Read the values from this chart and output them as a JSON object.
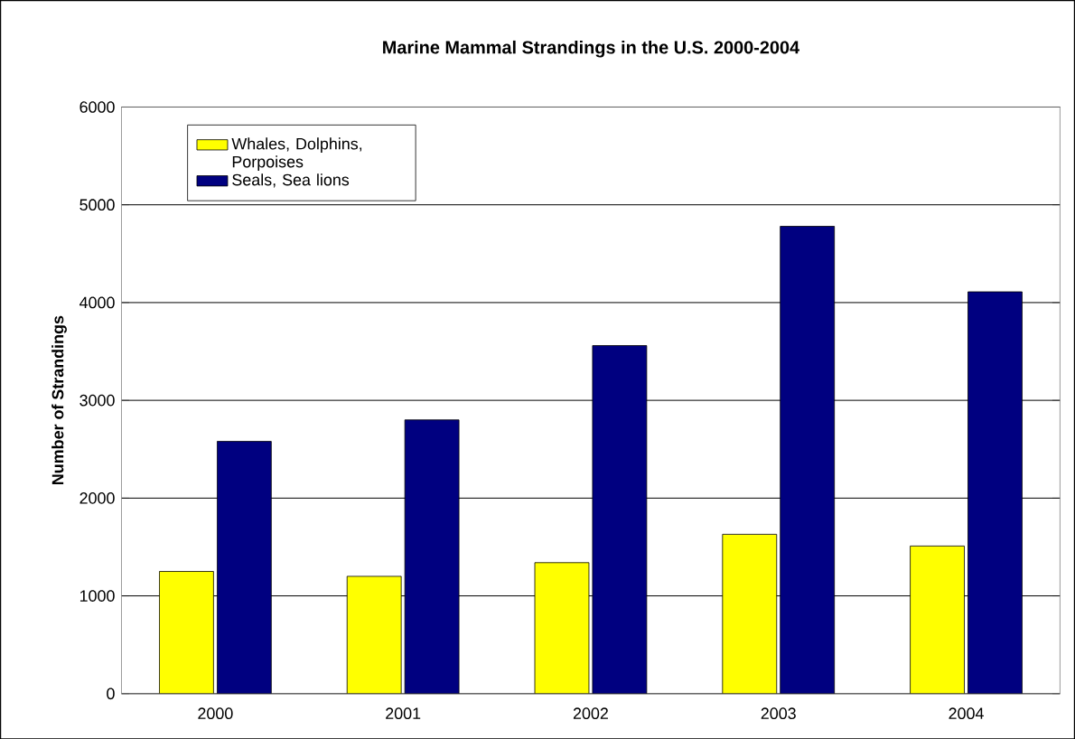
{
  "chart_data": {
    "type": "bar",
    "title": "Marine Mammal Strandings in the U.S. 2000-2004",
    "ylabel": "Number of Strandings",
    "categories": [
      "2000",
      "2001",
      "2002",
      "2003",
      "2004"
    ],
    "series": [
      {
        "name": "Whales, Dolphins, Porpoises",
        "color": "#ffff00",
        "values": [
          1250,
          1200,
          1340,
          1630,
          1510
        ]
      },
      {
        "name": "Seals, Sea lions",
        "color": "#000080",
        "values": [
          2580,
          2800,
          3560,
          4780,
          4110
        ]
      }
    ],
    "ylim": [
      0,
      6000
    ],
    "yticks": [
      0,
      1000,
      2000,
      3000,
      4000,
      5000,
      6000
    ],
    "grid": "y",
    "legend": "top left"
  }
}
